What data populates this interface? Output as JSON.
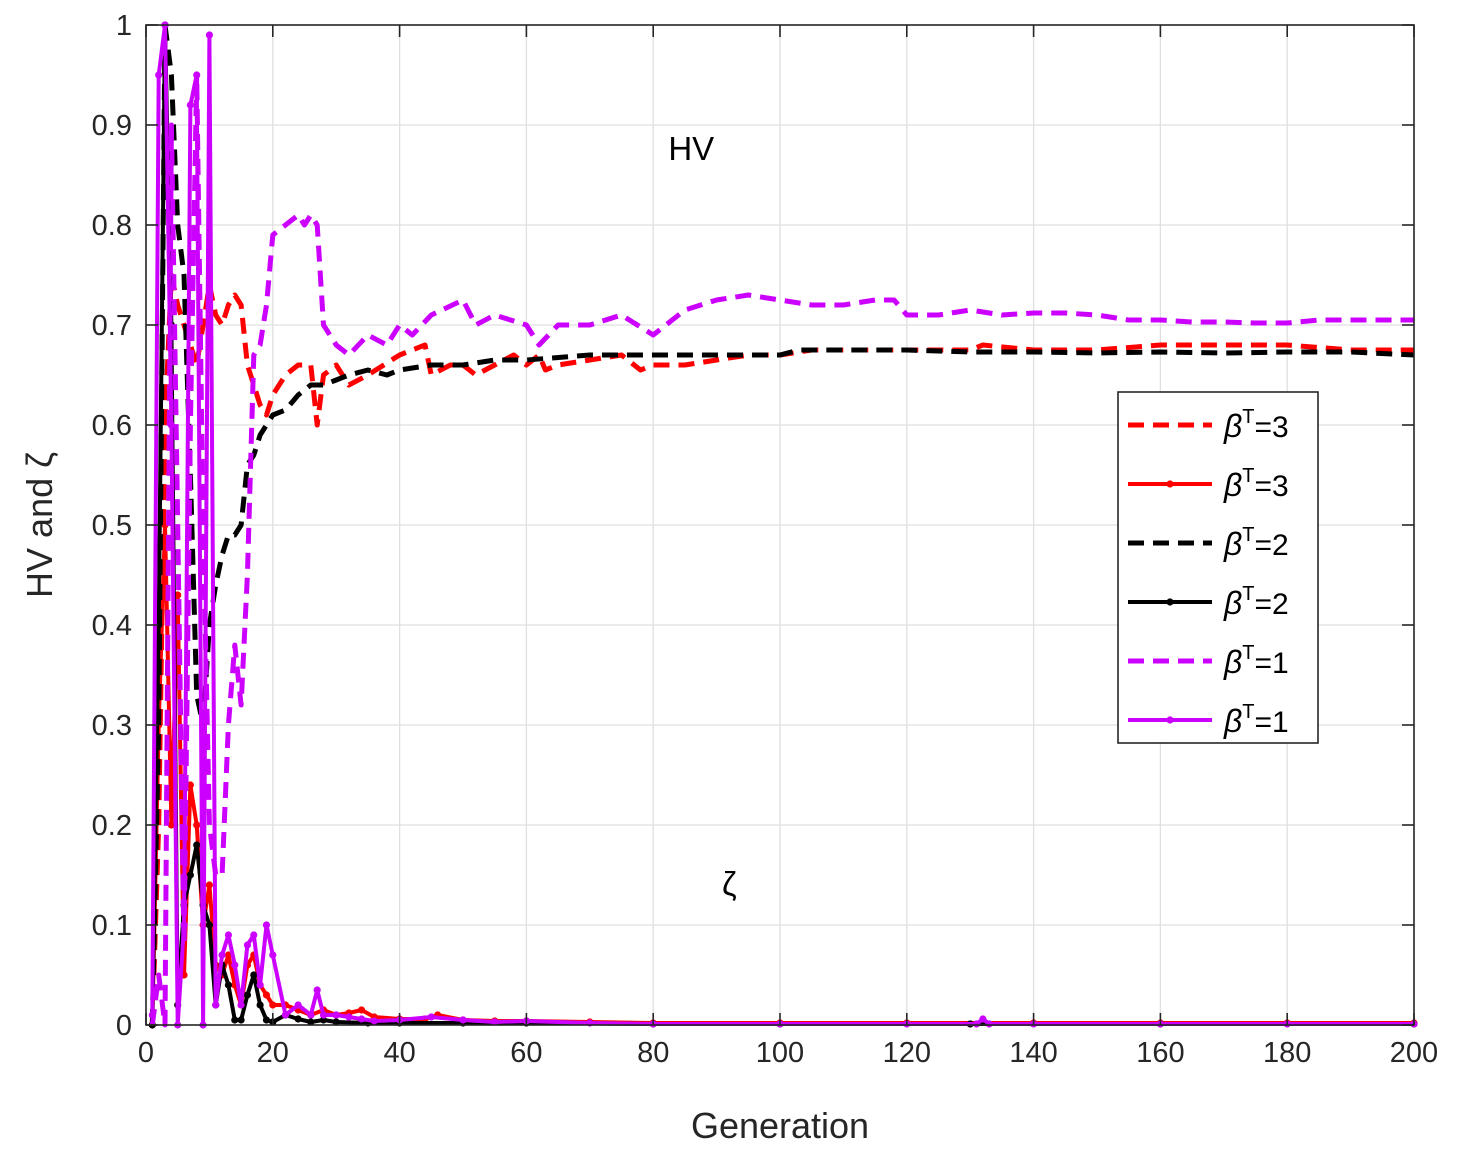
{
  "chart_data": {
    "type": "line",
    "title": "",
    "xlabel": "Generation",
    "ylabel": "HV and ζ",
    "xlim": [
      0,
      200
    ],
    "ylim": [
      0,
      1
    ],
    "xticks": [
      "0",
      "20",
      "40",
      "60",
      "80",
      "100",
      "120",
      "140",
      "160",
      "180",
      "200"
    ],
    "yticks": [
      "0",
      "0.1",
      "0.2",
      "0.3",
      "0.4",
      "0.5",
      "0.6",
      "0.7",
      "0.8",
      "0.9",
      "1"
    ],
    "grid": true,
    "legend_position": "right",
    "annotations": [
      {
        "text": "HV",
        "x": 86,
        "y": 0.865
      },
      {
        "text": "ζ",
        "x": 92,
        "y": 0.13
      }
    ],
    "series": [
      {
        "name": "βT=3",
        "metric": "HV",
        "color": "#ff0000",
        "style": "dashed",
        "marker": false,
        "legend_label": {
          "base": "β",
          "sup": "T",
          "suffix": "=3"
        },
        "x": [
          1,
          2,
          3,
          4,
          5,
          6,
          7,
          8,
          9,
          10,
          11,
          12,
          13,
          14,
          15,
          16,
          17,
          18,
          19,
          20,
          22,
          24,
          26,
          27,
          28,
          30,
          32,
          35,
          40,
          44,
          45,
          48,
          50,
          52,
          55,
          58,
          60,
          62,
          63,
          65,
          70,
          75,
          78,
          80,
          85,
          90,
          95,
          100,
          105,
          110,
          120,
          130,
          132,
          140,
          150,
          160,
          170,
          180,
          190,
          200
        ],
        "y": [
          0.0,
          0.2,
          0.6,
          0.75,
          0.72,
          0.7,
          0.68,
          0.66,
          0.7,
          0.74,
          0.71,
          0.7,
          0.72,
          0.73,
          0.72,
          0.66,
          0.64,
          0.62,
          0.61,
          0.63,
          0.65,
          0.66,
          0.66,
          0.6,
          0.65,
          0.66,
          0.64,
          0.65,
          0.67,
          0.68,
          0.65,
          0.66,
          0.66,
          0.65,
          0.66,
          0.67,
          0.66,
          0.67,
          0.655,
          0.66,
          0.665,
          0.67,
          0.655,
          0.66,
          0.66,
          0.665,
          0.67,
          0.67,
          0.675,
          0.675,
          0.675,
          0.675,
          0.68,
          0.675,
          0.675,
          0.68,
          0.68,
          0.68,
          0.675,
          0.675
        ]
      },
      {
        "name": "βT=3",
        "metric": "ζ",
        "color": "#ff0000",
        "style": "solid",
        "marker": true,
        "legend_label": {
          "base": "β",
          "sup": "T",
          "suffix": "=3"
        },
        "x": [
          1,
          2,
          3,
          4,
          5,
          6,
          7,
          8,
          9,
          10,
          11,
          12,
          13,
          14,
          15,
          16,
          17,
          18,
          19,
          20,
          22,
          24,
          26,
          28,
          30,
          32,
          34,
          36,
          40,
          44,
          46,
          50,
          55,
          60,
          70,
          80,
          100,
          120,
          140,
          160,
          180,
          200
        ],
        "y": [
          0.0,
          0.3,
          0.5,
          0.2,
          0.43,
          0.05,
          0.24,
          0.2,
          0.1,
          0.14,
          0.06,
          0.05,
          0.07,
          0.04,
          0.02,
          0.06,
          0.07,
          0.04,
          0.03,
          0.02,
          0.02,
          0.015,
          0.01,
          0.015,
          0.01,
          0.012,
          0.015,
          0.008,
          0.006,
          0.006,
          0.01,
          0.005,
          0.004,
          0.004,
          0.003,
          0.002,
          0.002,
          0.002,
          0.002,
          0.002,
          0.002,
          0.002
        ]
      },
      {
        "name": "βT=2",
        "metric": "HV",
        "color": "#000000",
        "style": "dashed",
        "marker": false,
        "legend_label": {
          "base": "β",
          "sup": "T",
          "suffix": "=2"
        },
        "x": [
          1,
          2,
          3,
          4,
          5,
          6,
          7,
          8,
          9,
          10,
          11,
          12,
          13,
          14,
          15,
          16,
          17,
          18,
          19,
          20,
          22,
          24,
          26,
          28,
          30,
          32,
          35,
          38,
          40,
          45,
          50,
          55,
          60,
          70,
          80,
          90,
          100,
          103,
          105,
          110,
          120,
          130,
          140,
          150,
          160,
          170,
          180,
          190,
          200
        ],
        "y": [
          0.0,
          0.3,
          1.0,
          0.95,
          0.8,
          0.75,
          0.55,
          0.33,
          0.3,
          0.4,
          0.44,
          0.47,
          0.49,
          0.49,
          0.5,
          0.56,
          0.57,
          0.59,
          0.6,
          0.61,
          0.615,
          0.63,
          0.64,
          0.64,
          0.645,
          0.65,
          0.655,
          0.65,
          0.655,
          0.66,
          0.66,
          0.665,
          0.665,
          0.67,
          0.67,
          0.67,
          0.67,
          0.675,
          0.675,
          0.675,
          0.675,
          0.673,
          0.673,
          0.672,
          0.673,
          0.672,
          0.673,
          0.673,
          0.67
        ]
      },
      {
        "name": "βT=2",
        "metric": "ζ",
        "color": "#000000",
        "style": "solid",
        "marker": true,
        "legend_label": {
          "base": "β",
          "sup": "T",
          "suffix": "=2"
        },
        "x": [
          1,
          2,
          3,
          4,
          5,
          6,
          7,
          8,
          9,
          10,
          11,
          12,
          13,
          14,
          15,
          16,
          17,
          18,
          19,
          20,
          22,
          24,
          26,
          28,
          30,
          35,
          40,
          50,
          60,
          80,
          100,
          130,
          160,
          200
        ],
        "y": [
          0.0,
          0.4,
          1.0,
          0.7,
          0.02,
          0.12,
          0.15,
          0.18,
          0.12,
          0.1,
          0.02,
          0.06,
          0.04,
          0.005,
          0.005,
          0.03,
          0.05,
          0.02,
          0.005,
          0.003,
          0.01,
          0.006,
          0.003,
          0.005,
          0.003,
          0.002,
          0.002,
          0.002,
          0.002,
          0.001,
          0.001,
          0.001,
          0.001,
          0.001
        ]
      },
      {
        "name": "βT=1",
        "metric": "HV",
        "color": "#cc00ff",
        "style": "dashed",
        "marker": false,
        "legend_label": {
          "base": "β",
          "sup": "T",
          "suffix": "=1"
        },
        "x": [
          1,
          2,
          3,
          4,
          5,
          6,
          7,
          8,
          9,
          10,
          11,
          12,
          13,
          14,
          15,
          16,
          17,
          18,
          19,
          20,
          22,
          24,
          25,
          26,
          27,
          28,
          30,
          32,
          35,
          38,
          40,
          42,
          45,
          50,
          52,
          55,
          60,
          62,
          65,
          70,
          75,
          80,
          85,
          90,
          95,
          100,
          105,
          110,
          115,
          118,
          120,
          125,
          130,
          135,
          140,
          145,
          150,
          155,
          160,
          165,
          170,
          175,
          180,
          185,
          190,
          200
        ],
        "y": [
          0.0,
          0.05,
          0.0,
          0.9,
          0.5,
          0.08,
          0.6,
          0.95,
          0.5,
          0.2,
          0.15,
          0.15,
          0.3,
          0.38,
          0.32,
          0.45,
          0.67,
          0.68,
          0.72,
          0.79,
          0.8,
          0.81,
          0.8,
          0.81,
          0.8,
          0.7,
          0.68,
          0.67,
          0.69,
          0.68,
          0.7,
          0.69,
          0.71,
          0.725,
          0.7,
          0.71,
          0.7,
          0.68,
          0.7,
          0.7,
          0.71,
          0.69,
          0.715,
          0.725,
          0.73,
          0.725,
          0.72,
          0.72,
          0.725,
          0.725,
          0.71,
          0.71,
          0.715,
          0.71,
          0.712,
          0.712,
          0.71,
          0.705,
          0.705,
          0.703,
          0.703,
          0.702,
          0.702,
          0.705,
          0.705,
          0.705
        ]
      },
      {
        "name": "βT=1",
        "metric": "ζ",
        "color": "#cc00ff",
        "style": "solid",
        "marker": true,
        "legend_label": {
          "base": "β",
          "sup": "T",
          "suffix": "=1"
        },
        "x": [
          1,
          2,
          3,
          4,
          5,
          6,
          7,
          8,
          9,
          10,
          11,
          12,
          13,
          14,
          15,
          16,
          17,
          18,
          19,
          20,
          22,
          24,
          26,
          27,
          28,
          30,
          32,
          34,
          36,
          40,
          45,
          50,
          55,
          60,
          70,
          80,
          100,
          120,
          131,
          132,
          133,
          140,
          160,
          180,
          200
        ],
        "y": [
          0.01,
          0.95,
          1.0,
          0.6,
          0.0,
          0.1,
          0.92,
          0.95,
          0.0,
          0.99,
          0.02,
          0.07,
          0.09,
          0.06,
          0.02,
          0.08,
          0.09,
          0.04,
          0.1,
          0.07,
          0.01,
          0.02,
          0.01,
          0.035,
          0.01,
          0.01,
          0.008,
          0.006,
          0.004,
          0.005,
          0.008,
          0.005,
          0.003,
          0.004,
          0.002,
          0.001,
          0.001,
          0.001,
          0.001,
          0.006,
          0.001,
          0.001,
          0.001,
          0.001,
          0.001
        ]
      }
    ]
  }
}
